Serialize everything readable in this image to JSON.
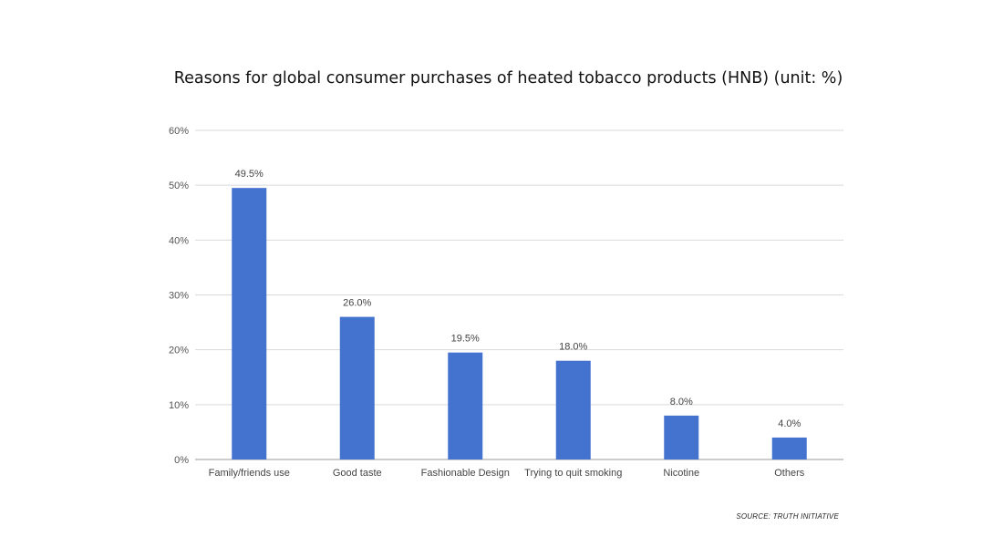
{
  "chart_data": {
    "type": "bar",
    "title": "Reasons for global consumer purchases of heated tobacco products (HNB) (unit: %)",
    "categories": [
      "Family/friends use",
      "Good taste",
      "Fashionable Design",
      "Trying to quit smoking",
      "Nicotine",
      "Others"
    ],
    "values": [
      49.5,
      26.0,
      19.5,
      18.0,
      8.0,
      4.0
    ],
    "data_labels": [
      "49.5%",
      "26.0%",
      "19.5%",
      "18.0%",
      "8.0%",
      "4.0%"
    ],
    "y_ticks": [
      "0%",
      "10%",
      "20%",
      "30%",
      "40%",
      "50%",
      "60%"
    ],
    "ylim": [
      0,
      60
    ],
    "grid": true,
    "bar_color": "#4472cf",
    "source": "SOURCE: TRUTH INITIATIVE"
  }
}
